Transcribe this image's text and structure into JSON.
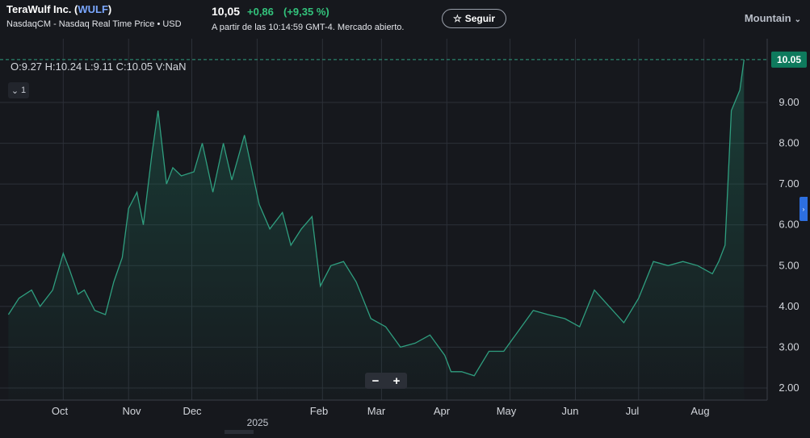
{
  "header": {
    "company": "TeraWulf Inc. (",
    "symbol": "WULF",
    "close_paren": ")",
    "source": "NasdaqCM - Nasdaq Real Time Price • USD",
    "price": "10,05",
    "change": "+0,86",
    "change_pct": "(+9,35 %)",
    "as_of": "A partir de las 10:14:59 GMT-4. Mercado abierto.",
    "follow_label": "Seguir",
    "theme_label": "Mountain",
    "accent_color": "#33c37c"
  },
  "legend": {
    "ohlc": "O:9.27   H:10.24   L:9.11   C:10.05   V:NaN",
    "collapse_label": "1"
  },
  "zoom": {
    "minus": "−",
    "plus": "+"
  },
  "chart_data": {
    "type": "area",
    "ylim": [
      1.8,
      10.3
    ],
    "y_ticks": [
      "2.00",
      "3.00",
      "4.00",
      "5.00",
      "6.00",
      "7.00",
      "8.00",
      "9.00"
    ],
    "last_value_label": "10.05",
    "x_ticks": [
      "Oct",
      "Nov",
      "Dec",
      "Feb",
      "Mar",
      "Apr",
      "May",
      "Jun",
      "Jul",
      "Aug"
    ],
    "year_label": "2025",
    "line_color": "#2f9e7f",
    "x": [
      "2024-09-05",
      "2024-09-10",
      "2024-09-16",
      "2024-09-20",
      "2024-09-26",
      "2024-10-01",
      "2024-10-04",
      "2024-10-08",
      "2024-10-11",
      "2024-10-16",
      "2024-10-21",
      "2024-10-25",
      "2024-10-29",
      "2024-11-01",
      "2024-11-05",
      "2024-11-08",
      "2024-11-12",
      "2024-11-15",
      "2024-11-19",
      "2024-11-22",
      "2024-11-26",
      "2024-12-02",
      "2024-12-06",
      "2024-12-11",
      "2024-12-16",
      "2024-12-20",
      "2024-12-26",
      "2025-01-02",
      "2025-01-07",
      "2025-01-13",
      "2025-01-17",
      "2025-01-22",
      "2025-01-27",
      "2025-01-31",
      "2025-02-05",
      "2025-02-11",
      "2025-02-17",
      "2025-02-24",
      "2025-03-03",
      "2025-03-10",
      "2025-03-17",
      "2025-03-24",
      "2025-03-31",
      "2025-04-03",
      "2025-04-08",
      "2025-04-14",
      "2025-04-21",
      "2025-04-28",
      "2025-05-05",
      "2025-05-12",
      "2025-05-19",
      "2025-05-27",
      "2025-06-03",
      "2025-06-10",
      "2025-06-17",
      "2025-06-24",
      "2025-07-01",
      "2025-07-08",
      "2025-07-15",
      "2025-07-22",
      "2025-07-29",
      "2025-08-05",
      "2025-08-08",
      "2025-08-11",
      "2025-08-14",
      "2025-08-18",
      "2025-08-20"
    ],
    "values": [
      3.8,
      4.2,
      4.4,
      4.0,
      4.4,
      5.3,
      4.9,
      4.3,
      4.4,
      3.9,
      3.8,
      4.6,
      5.2,
      6.4,
      6.8,
      6.0,
      7.7,
      8.8,
      7.0,
      7.4,
      7.2,
      7.3,
      8.0,
      6.8,
      8.0,
      7.1,
      8.2,
      6.5,
      5.9,
      6.3,
      5.5,
      5.9,
      6.2,
      4.5,
      5.0,
      5.1,
      4.6,
      3.7,
      3.5,
      3.0,
      3.1,
      3.3,
      2.8,
      2.4,
      2.4,
      2.3,
      2.9,
      2.9,
      3.4,
      3.9,
      3.8,
      3.7,
      3.5,
      4.4,
      4.0,
      3.6,
      4.2,
      5.1,
      5.0,
      5.1,
      5.0,
      4.8,
      5.1,
      5.5,
      8.8,
      9.3,
      10.05
    ]
  }
}
